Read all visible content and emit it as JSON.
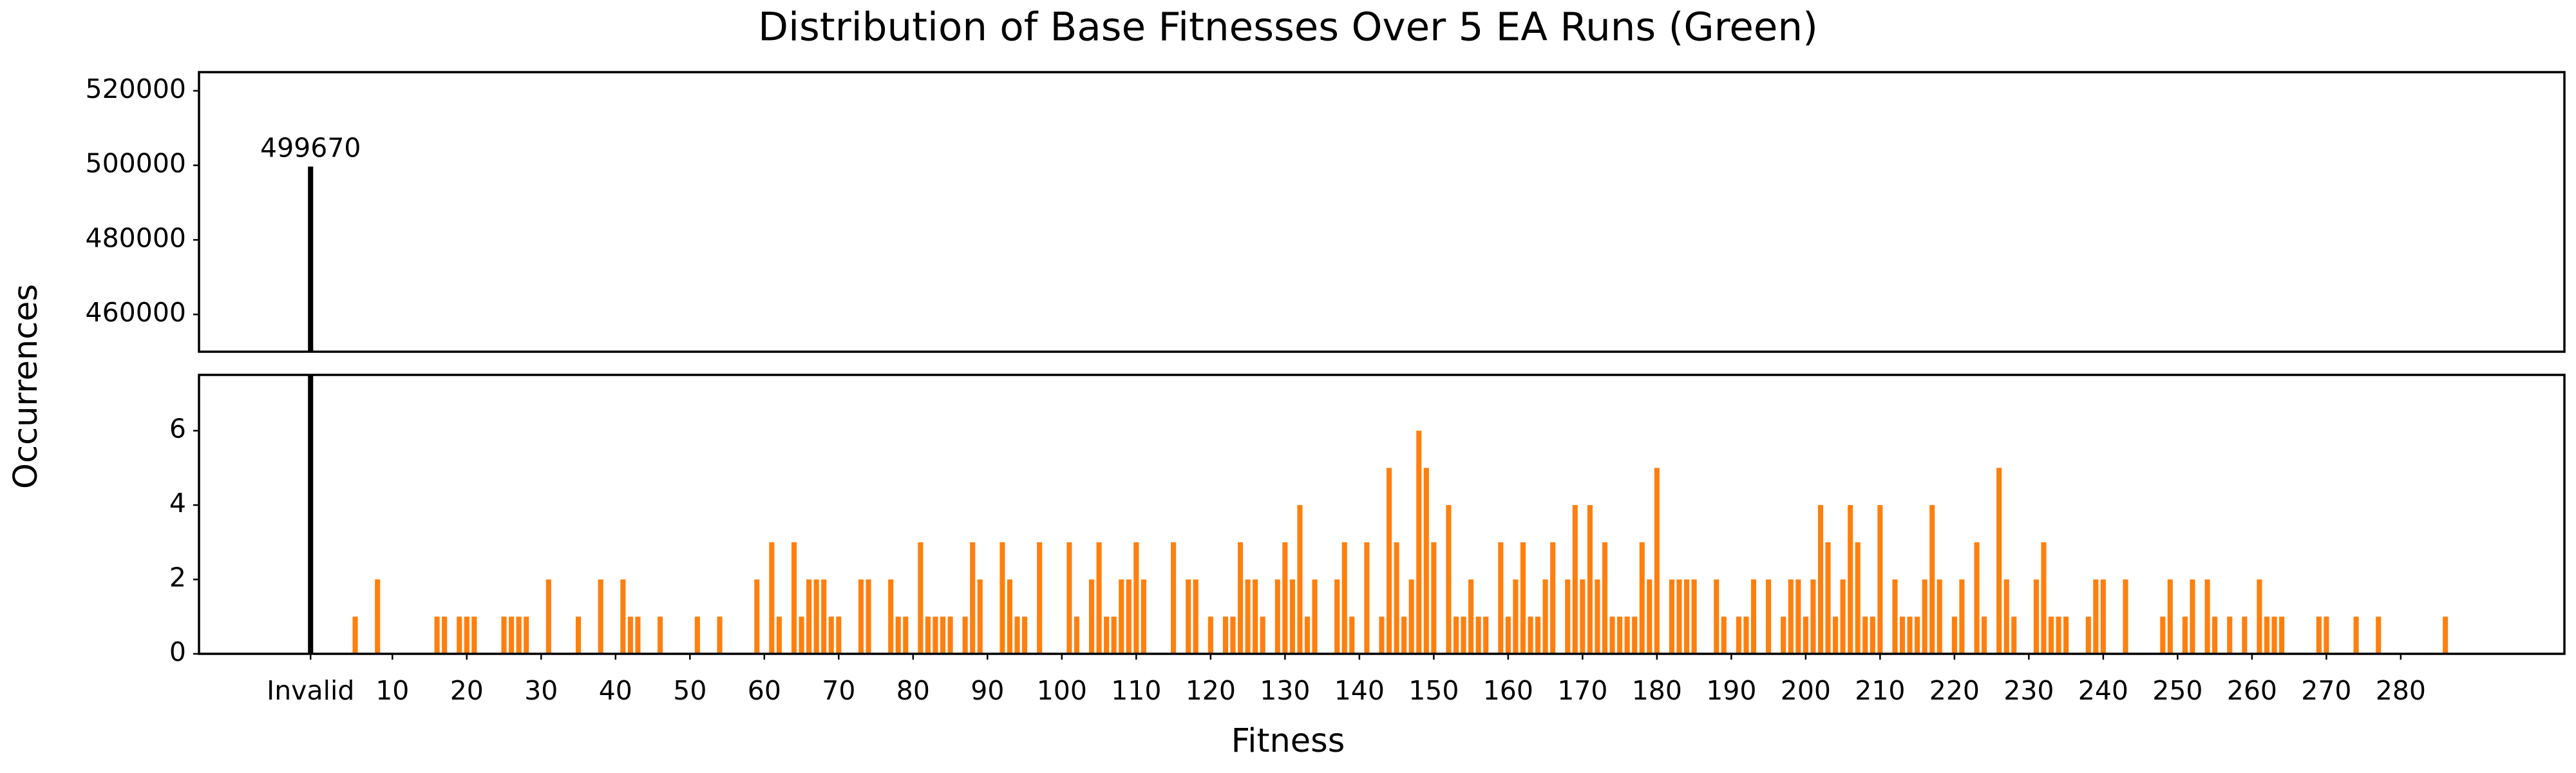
{
  "chart_data": {
    "type": "broken_bar",
    "title": "Distribution of Base Fitnesses Over 5 EA Runs (Green)",
    "xlabel": "Fitness",
    "ylabel": "Occurrences",
    "color": "#ff7f0e",
    "invalid_color": "#000000",
    "invalid": {
      "x": -1,
      "value": 499670
    },
    "x": [
      5,
      8,
      16,
      17,
      19,
      20,
      21,
      25,
      26,
      27,
      28,
      31,
      35,
      38,
      41,
      42,
      43,
      46,
      51,
      54,
      59,
      61,
      62,
      64,
      65,
      66,
      67,
      68,
      69,
      70,
      73,
      74,
      77,
      78,
      79,
      81,
      82,
      83,
      84,
      85,
      87,
      88,
      89,
      92,
      93,
      94,
      95,
      97,
      101,
      102,
      104,
      105,
      106,
      107,
      108,
      109,
      110,
      111,
      115,
      117,
      118,
      120,
      122,
      123,
      124,
      125,
      126,
      127,
      129,
      130,
      131,
      132,
      133,
      134,
      137,
      138,
      139,
      141,
      143,
      144,
      145,
      146,
      147,
      148,
      149,
      150,
      152,
      153,
      154,
      155,
      156,
      157,
      159,
      160,
      161,
      162,
      163,
      164,
      165,
      166,
      168,
      169,
      170,
      171,
      172,
      173,
      174,
      175,
      176,
      177,
      178,
      179,
      180,
      182,
      183,
      184,
      185,
      188,
      189,
      191,
      192,
      193,
      195,
      197,
      198,
      199,
      200,
      201,
      202,
      203,
      204,
      205,
      206,
      207,
      208,
      209,
      210,
      212,
      213,
      214,
      215,
      216,
      217,
      218,
      220,
      221,
      223,
      224,
      226,
      227,
      228,
      231,
      232,
      233,
      234,
      235,
      238,
      239,
      240,
      243,
      248,
      249,
      251,
      252,
      254,
      255,
      257,
      259,
      261,
      262,
      263,
      264,
      269,
      270,
      274,
      277,
      286
    ],
    "values": [
      1,
      2,
      1,
      1,
      1,
      1,
      1,
      1,
      1,
      1,
      1,
      2,
      1,
      2,
      2,
      1,
      1,
      1,
      1,
      1,
      2,
      3,
      1,
      3,
      1,
      2,
      2,
      2,
      1,
      1,
      2,
      2,
      2,
      1,
      1,
      3,
      1,
      1,
      1,
      1,
      1,
      3,
      2,
      3,
      2,
      1,
      1,
      3,
      3,
      1,
      2,
      3,
      1,
      1,
      2,
      2,
      3,
      2,
      3,
      2,
      2,
      1,
      1,
      1,
      3,
      2,
      2,
      1,
      2,
      3,
      2,
      4,
      1,
      2,
      2,
      3,
      1,
      3,
      1,
      5,
      3,
      1,
      2,
      6,
      5,
      3,
      4,
      1,
      1,
      2,
      1,
      1,
      3,
      1,
      2,
      3,
      1,
      1,
      2,
      3,
      2,
      4,
      2,
      4,
      2,
      3,
      1,
      1,
      1,
      1,
      3,
      2,
      5,
      2,
      2,
      2,
      2,
      2,
      1,
      1,
      1,
      2,
      2,
      1,
      2,
      2,
      1,
      2,
      4,
      3,
      1,
      2,
      4,
      3,
      1,
      1,
      4,
      2,
      1,
      1,
      1,
      2,
      4,
      2,
      1,
      2,
      3,
      1,
      5,
      2,
      1,
      2,
      3,
      1,
      1,
      1,
      1,
      2,
      2,
      2,
      1,
      2,
      1,
      2,
      2,
      1,
      1,
      1,
      2,
      1,
      1,
      1,
      1,
      1,
      1,
      1,
      1
    ],
    "xlim": [
      -16,
      302
    ],
    "xticks": [
      {
        "value": -1,
        "label": "Invalid"
      },
      10,
      20,
      30,
      40,
      50,
      60,
      70,
      80,
      90,
      100,
      110,
      120,
      130,
      140,
      150,
      160,
      170,
      180,
      190,
      200,
      210,
      220,
      230,
      240,
      250,
      260,
      270,
      280
    ],
    "ylim": [
      0,
      7.5
    ],
    "yticks": [
      0,
      2,
      4,
      6
    ],
    "y2lim": [
      450000,
      525000
    ],
    "y2ticks": [
      460000,
      480000,
      500000,
      520000
    ]
  }
}
